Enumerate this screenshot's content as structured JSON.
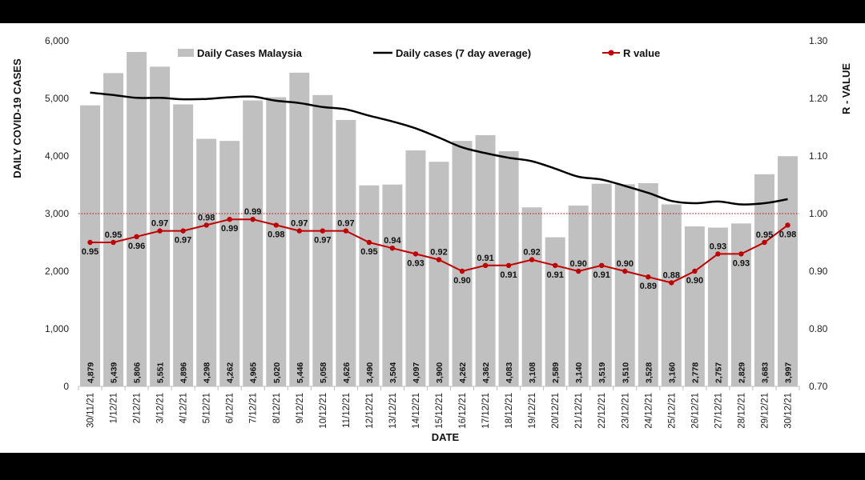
{
  "chart_data": {
    "type": "bar",
    "title": "",
    "xlabel": "DATE",
    "ylabel": "DAILY COVID-19 CASES",
    "y2label": "R - VALUE",
    "ylim": [
      0,
      6000
    ],
    "y2lim": [
      0.7,
      1.3
    ],
    "yticks": [
      "0",
      "1,000",
      "2,000",
      "3,000",
      "4,000",
      "5,000",
      "6,000"
    ],
    "y2ticks": [
      "0.70",
      "0.80",
      "0.90",
      "1.00",
      "1.10",
      "1.20",
      "1.30"
    ],
    "reference_line": {
      "axis": "y2",
      "value": 1.0,
      "style": "dotted",
      "color": "#c00000"
    },
    "legend_position": "top",
    "categories": [
      "30/11/21",
      "1/12/21",
      "2/12/21",
      "3/12/21",
      "4/12/21",
      "5/12/21",
      "6/12/21",
      "7/12/21",
      "8/12/21",
      "9/12/21",
      "10/12/21",
      "11/12/21",
      "12/12/21",
      "13/12/21",
      "14/12/21",
      "15/12/21",
      "16/12/21",
      "17/12/21",
      "18/12/21",
      "19/12/21",
      "20/12/21",
      "21/12/21",
      "22/12/21",
      "23/12/21",
      "24/12/21",
      "25/12/21",
      "26/12/21",
      "27/12/21",
      "28/12/21",
      "29/12/21",
      "30/12/21"
    ],
    "series": [
      {
        "name": "Daily Cases Malaysia",
        "kind": "bar",
        "axis": "y",
        "color": "#c0c0c0",
        "values": [
          4879,
          5439,
          5806,
          5551,
          4896,
          4298,
          4262,
          4965,
          5020,
          5446,
          5058,
          4626,
          3490,
          3504,
          4097,
          3900,
          4262,
          4362,
          4083,
          3108,
          2589,
          3140,
          3519,
          3510,
          3528,
          3160,
          2778,
          2757,
          2829,
          3683,
          3997
        ],
        "labels": [
          "4,879",
          "5,439",
          "5,806",
          "5,551",
          "4,896",
          "4,298",
          "4,262",
          "4,965",
          "5,020",
          "5,446",
          "5,058",
          "4,626",
          "3,490",
          "3,504",
          "4,097",
          "3,900",
          "4,262",
          "4,362",
          "4,083",
          "3,108",
          "2,589",
          "3,140",
          "3,519",
          "3,510",
          "3,528",
          "3,160",
          "2,778",
          "2,757",
          "2,829",
          "3,683",
          "3,997"
        ]
      },
      {
        "name": "Daily cases (7 day average)",
        "kind": "line",
        "axis": "y",
        "color": "#000000",
        "values": [
          5100,
          5060,
          5010,
          5010,
          4985,
          4990,
          5020,
          5030,
          4960,
          4920,
          4850,
          4810,
          4700,
          4600,
          4480,
          4320,
          4150,
          4050,
          3970,
          3910,
          3780,
          3640,
          3590,
          3480,
          3360,
          3220,
          3180,
          3210,
          3160,
          3180,
          3250
        ]
      },
      {
        "name": "R value",
        "kind": "line",
        "axis": "y2",
        "color": "#c00000",
        "values": [
          0.95,
          0.95,
          0.96,
          0.97,
          0.97,
          0.98,
          0.99,
          0.99,
          0.98,
          0.97,
          0.97,
          0.97,
          0.95,
          0.94,
          0.93,
          0.92,
          0.9,
          0.91,
          0.91,
          0.92,
          0.91,
          0.9,
          0.91,
          0.9,
          0.89,
          0.88,
          0.9,
          0.93,
          0.93,
          0.95,
          0.98
        ],
        "labels": [
          "0.95",
          "0.95",
          "0.96",
          "0.97",
          "0.97",
          "0.98",
          "0.99",
          "0.99",
          "0.98",
          "0.97",
          "0.97",
          "0.97",
          "0.95",
          "0.94",
          "0.93",
          "0.92",
          "0.90",
          "0.91",
          "0.91",
          "0.92",
          "0.91",
          "0.90",
          "0.91",
          "0.90",
          "0.89",
          "0.88",
          "0.90",
          "0.93",
          "0.93",
          "0.95",
          "0.98"
        ]
      }
    ]
  }
}
